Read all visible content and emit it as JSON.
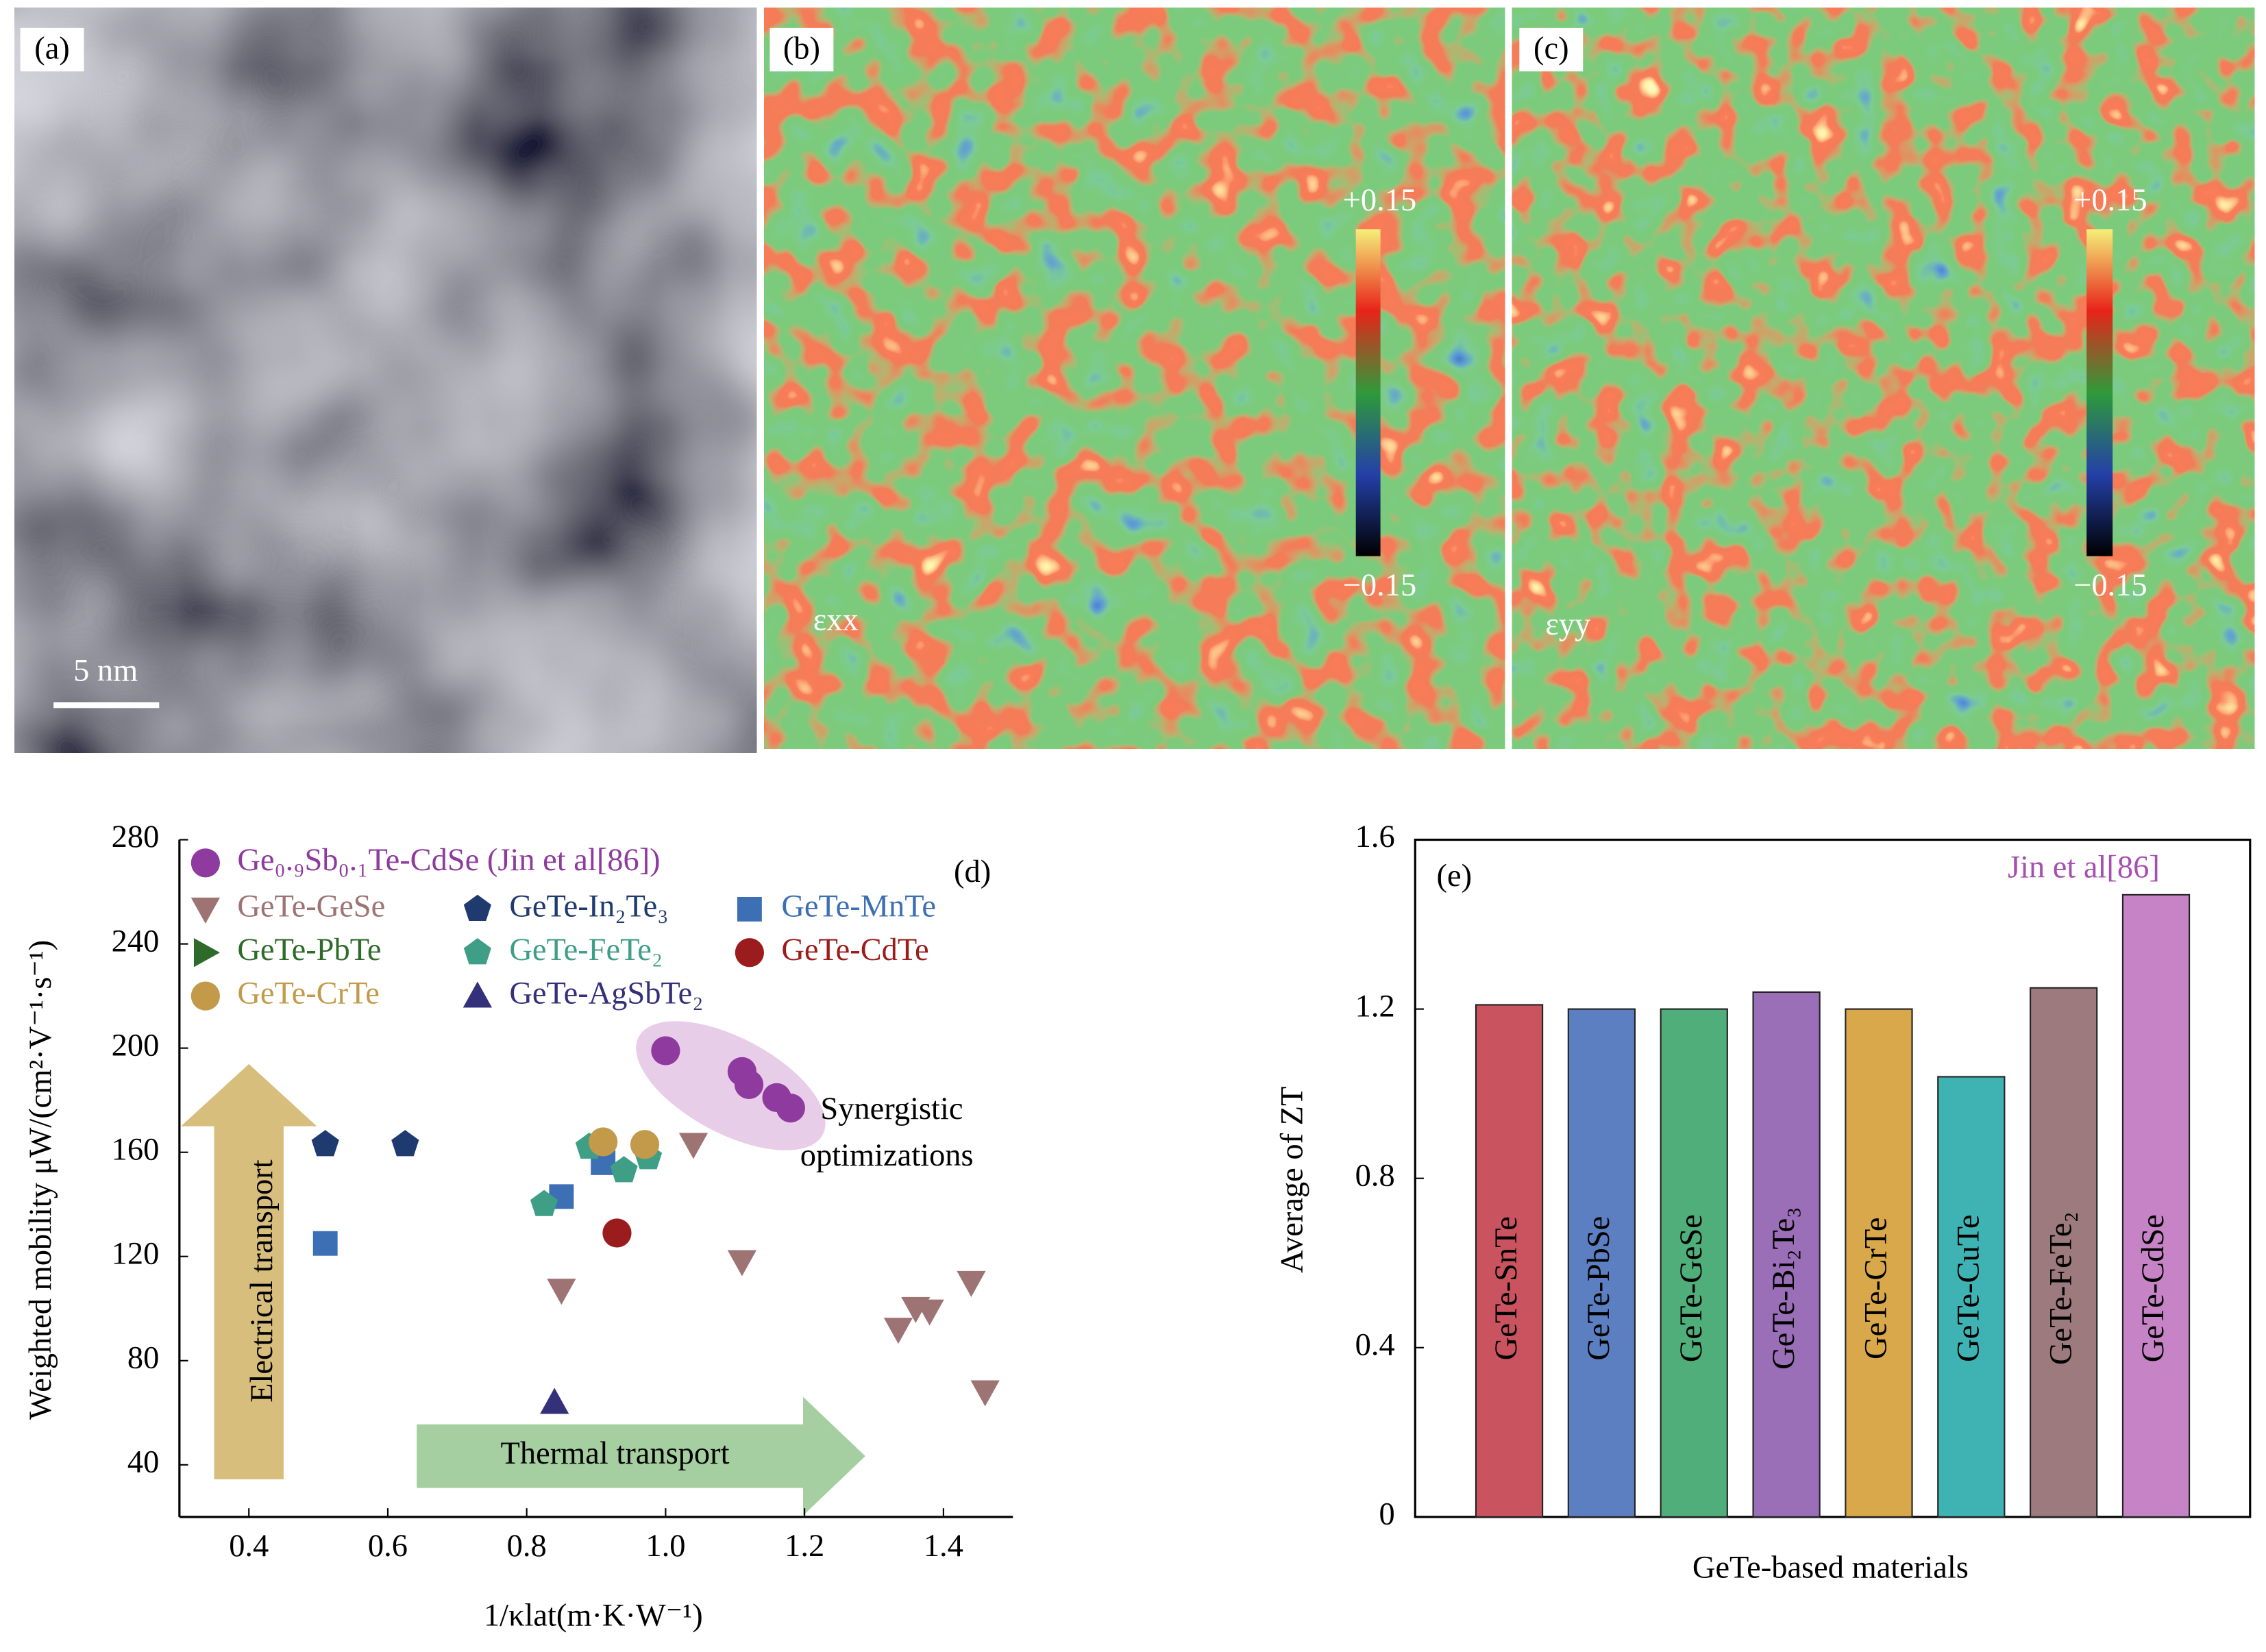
{
  "panels": {
    "a": {
      "label": "(a)",
      "scale_bar": "5 nm"
    },
    "b": {
      "label": "(b)",
      "max": "+0.15",
      "min": "−0.15",
      "component": "εxx"
    },
    "c": {
      "label": "(c)",
      "max": "+0.15",
      "min": "−0.15",
      "component": "εyy"
    }
  },
  "chart_data": [
    {
      "type": "scatter",
      "xlabel": "1/κlat(m·K·W⁻¹)",
      "ylabel": "Weighted mobility μW/(cm²·V⁻¹·s⁻¹)",
      "xlim": [
        0.3,
        1.5
      ],
      "ylim": [
        20,
        280
      ],
      "xticks": [
        0.4,
        0.6,
        0.8,
        {
          "value": 1,
          "label": "1.0"
        },
        1.2,
        1.4
      ],
      "yticks": [
        40,
        80,
        120,
        160,
        200,
        240,
        280
      ],
      "annotations": [
        "(d)",
        "Synergistic",
        "optimizations",
        "Electrical transport",
        "Thermal transport"
      ],
      "series": [
        {
          "name": "Ge₀.₉Sb₀.₁Te-CdSe (Jin et al[86])",
          "color": "#8e3a9e",
          "marker": "sphere",
          "x": [
            1.0,
            1.11,
            1.12,
            1.16,
            1.18
          ],
          "values": [
            199,
            191,
            186,
            181,
            177
          ]
        },
        {
          "name": "GeTe-GeSe",
          "color": "#9e7373",
          "marker": "triangle-down",
          "x": [
            0.85,
            1.04,
            1.11,
            1.335,
            1.36,
            1.38,
            1.44,
            1.46
          ],
          "values": [
            107,
            163,
            118,
            92,
            100,
            99,
            110,
            68
          ]
        },
        {
          "name": "GeTe-In₂Te₃",
          "color": "#1f3a6e",
          "marker": "pentagon",
          "x": [
            0.51,
            0.625
          ],
          "values": [
            163,
            163
          ]
        },
        {
          "name": "GeTe-MnTe",
          "color": "#3d6fb5",
          "marker": "square",
          "x": [
            0.51,
            0.85,
            0.91
          ],
          "values": [
            125,
            143,
            156
          ]
        },
        {
          "name": "GeTe-PbTe",
          "color": "#2e6b2a",
          "marker": "triangle-right",
          "x": [],
          "values": []
        },
        {
          "name": "GeTe-FeTe₂",
          "color": "#3f9e86",
          "marker": "pentagon",
          "x": [
            0.825,
            0.89,
            0.94,
            0.975
          ],
          "values": [
            140,
            162,
            153,
            158
          ]
        },
        {
          "name": "GeTe-CdTe",
          "color": "#9b1c1c",
          "marker": "circle",
          "x": [
            0.93
          ],
          "values": [
            129
          ]
        },
        {
          "name": "GeTe-CrTe",
          "color": "#c39a4a",
          "marker": "circle",
          "x": [
            0.91,
            0.97
          ],
          "values": [
            164,
            163
          ]
        },
        {
          "name": "GeTe-AgSbTe₂",
          "color": "#34307a",
          "marker": "triangle-up",
          "x": [
            0.84
          ],
          "values": [
            64
          ]
        }
      ]
    },
    {
      "type": "bar",
      "xlabel": "GeTe-based materials",
      "ylabel": "Average of ZT",
      "ylim": [
        0,
        1.6
      ],
      "yticks": [
        0,
        0.4,
        0.8,
        1.2,
        1.6
      ],
      "annotations": [
        "(e)",
        "Jin et al[86]"
      ],
      "categories": [
        "GeTe-SnTe",
        "GeTe-PbSe",
        "GeTe-GeSe",
        "GeTe-Bi₂Te₃",
        "GeTe-CrTe",
        "GeTe-CuTe",
        "GeTe-FeTe₂",
        "GeTe-CdSe"
      ],
      "values": [
        1.21,
        1.2,
        1.2,
        1.24,
        1.2,
        1.04,
        1.25,
        1.47
      ],
      "colors": [
        "#c9535f",
        "#5b7fc1",
        "#4fae7a",
        "#9a6fb8",
        "#d9a84a",
        "#3fb3b3",
        "#9c7a7e",
        "#c684c6"
      ]
    }
  ]
}
